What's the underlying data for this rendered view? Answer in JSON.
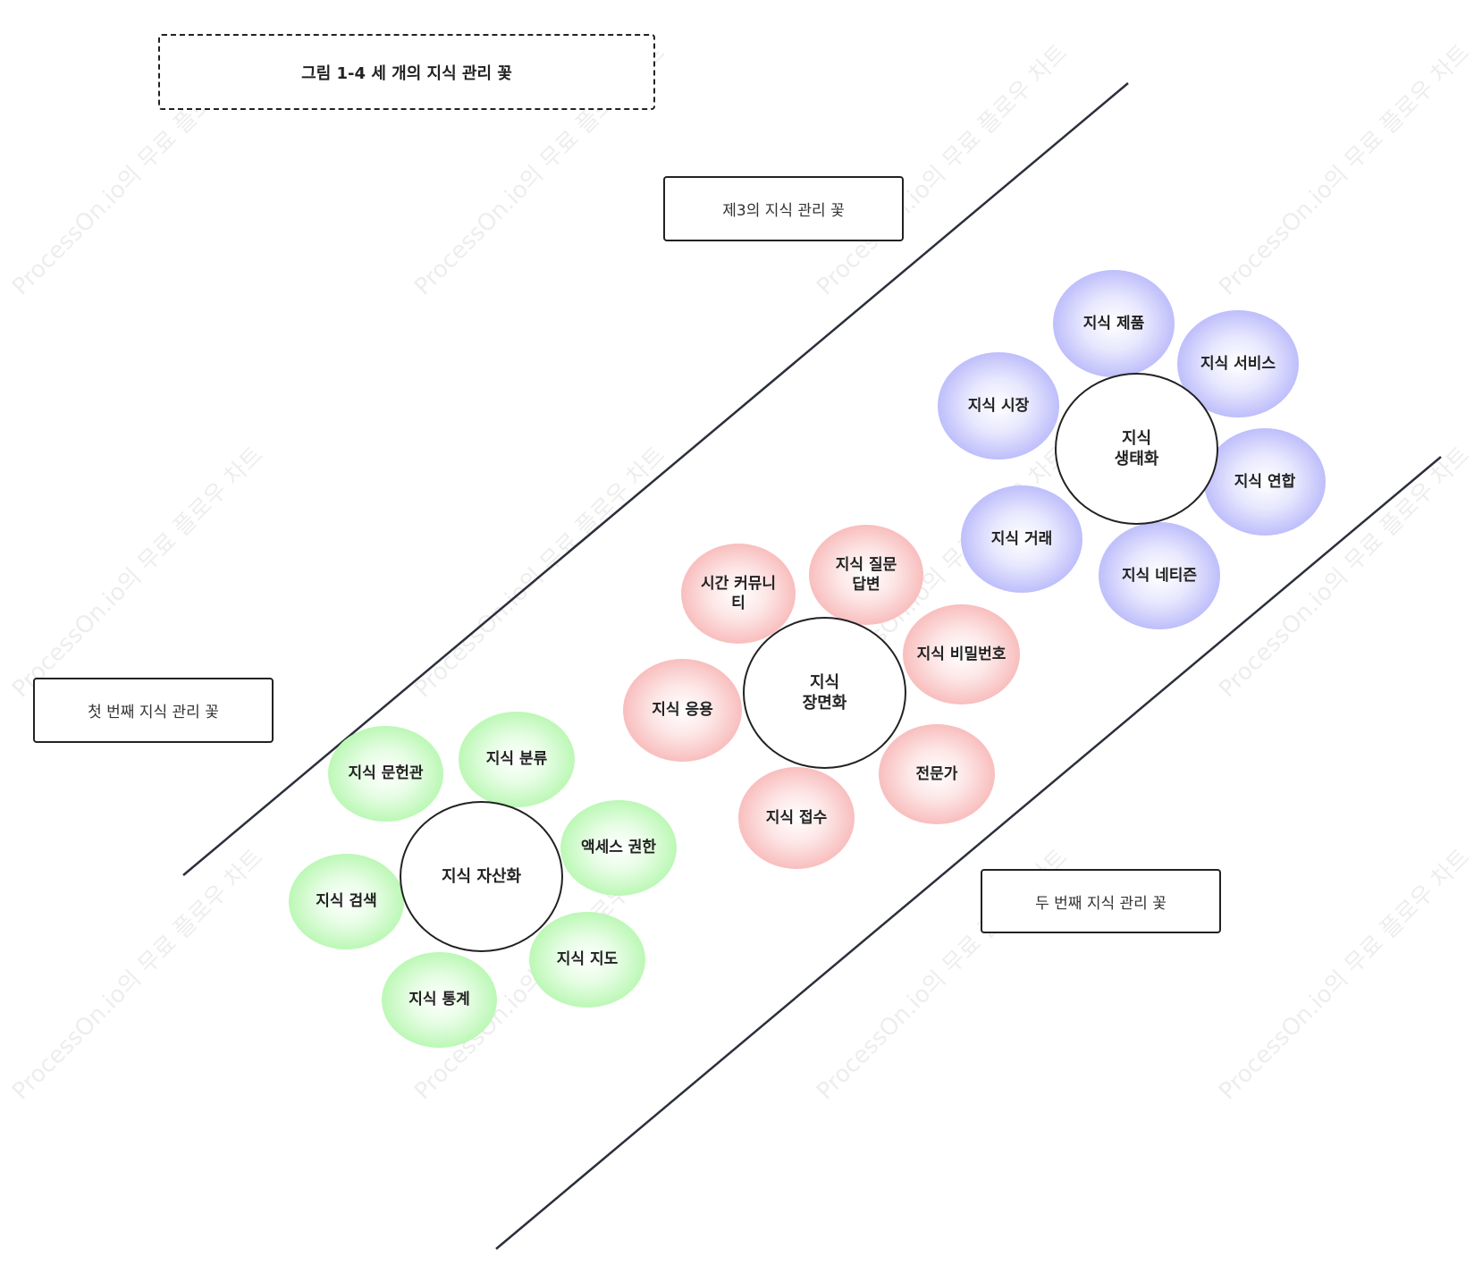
{
  "title": "그림 1-4  세 개의 지식 관리 꽃",
  "labels": {
    "third": "제3의 지식 관리 꽃",
    "first": "첫 번째 지식 관리 꽃",
    "second": "두 번째 지식 관리 꽃"
  },
  "watermark": "ProcessOn.io의 무료 플로우 차트",
  "flowers": {
    "green": {
      "center": "지식 자산화",
      "petals": [
        "지식 문헌관",
        "지식 분류",
        "액세스 권한",
        "지식 검색",
        "지식 지도",
        "지식 통계"
      ]
    },
    "red": {
      "center": "지식\n장면화",
      "petals": [
        "시간 커뮤니티",
        "지식 질문 답변",
        "지식 비밀번호",
        "지식 응용",
        "전문가",
        "지식 접수"
      ]
    },
    "blue": {
      "center": "지식\n생태화",
      "petals": [
        "지식 제품",
        "지식 서비스",
        "지식 시장",
        "지식 연합",
        "지식 거래",
        "지식 네티즌"
      ]
    }
  },
  "colors": {
    "green": "#a5f39d",
    "red": "#f4a5a5",
    "blue": "#a8a8f8",
    "line": "#2b2f3a"
  }
}
